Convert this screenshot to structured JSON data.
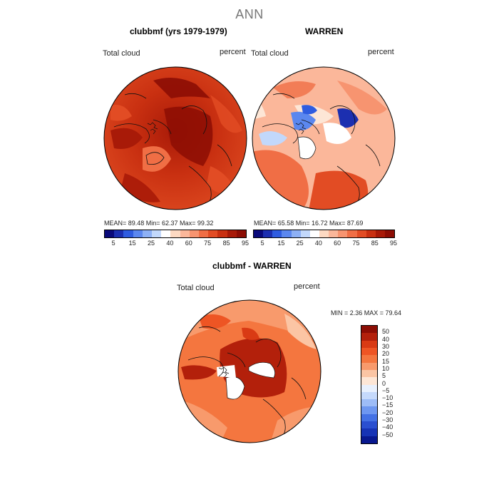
{
  "figure": {
    "title": "ANN"
  },
  "panels": {
    "left": {
      "title": "clubbmf (yrs 1979-1979)",
      "field_label": "Total cloud",
      "unit_label": "percent",
      "stats_text": "MEAN=   89.48   Min=   62.37   Max=   99.32"
    },
    "right": {
      "title": "WARREN",
      "field_label": "Total cloud",
      "unit_label": "percent",
      "stats_text": "MEAN=   65.58   Min=   16.72   Max=   87.69"
    },
    "diff": {
      "title": "clubbmf - WARREN",
      "field_label": "Total cloud",
      "unit_label": "percent",
      "stats_text": "MIN =     2.36  MAX =   79.64"
    }
  },
  "top_colorbar": {
    "colors": [
      "#0a0a7a",
      "#1c2fb0",
      "#2f5ce0",
      "#5b87ef",
      "#8db0f5",
      "#c2d8fb",
      "#ffffff",
      "#fdd9c2",
      "#fbb79a",
      "#f79470",
      "#f06e45",
      "#e24c24",
      "#c93011",
      "#a81a08",
      "#8c0d04"
    ],
    "tick_labels": [
      "5",
      "15",
      "25",
      "40",
      "60",
      "75",
      "85",
      "95"
    ]
  },
  "diff_colorbar": {
    "colors": [
      "#8c0d04",
      "#b3200b",
      "#d93a14",
      "#ee5524",
      "#f4763f",
      "#f89a6c",
      "#fbc5a4",
      "#fde6d6",
      "#e8f0fd",
      "#c5d9fb",
      "#9dbcf7",
      "#6e97f0",
      "#4471e4",
      "#2a4fd0",
      "#1633b5",
      "#08188f"
    ],
    "tick_labels": [
      "50",
      "40",
      "30",
      "20",
      "15",
      "10",
      "5",
      "0",
      "−5",
      "−10",
      "−15",
      "−20",
      "−30",
      "−40",
      "−50"
    ]
  }
}
